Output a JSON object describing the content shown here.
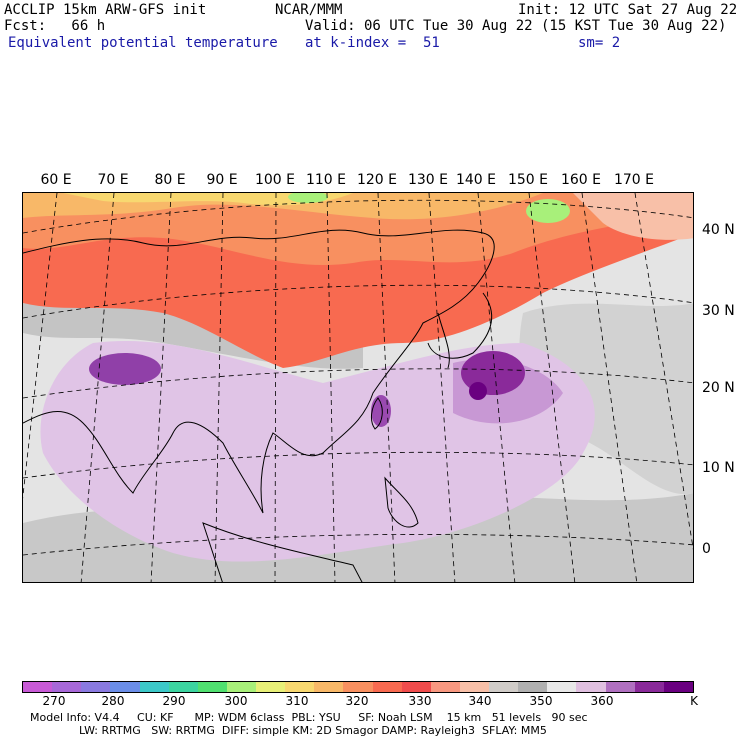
{
  "header": {
    "line1_left": "ACCLIP 15km ARW-GFS init",
    "line1_center": "NCAR/MMM",
    "line1_right": "Init: 12 UTC Sat 27 Aug 22",
    "line2_left": "Fcst:   66 h",
    "line2_right": "Valid: 06 UTC Tue 30 Aug 22 (15 KST Tue 30 Aug 22)",
    "line3_left": "Equivalent potential temperature",
    "line3_center": "at k-index =  51",
    "line3_right": "sm= 2"
  },
  "longitude_labels": [
    "60 E",
    "70 E",
    "80 E",
    "90 E",
    "100 E",
    "110 E",
    "120 E",
    "130 E",
    "140 E",
    "150 E",
    "160 E",
    "170 E"
  ],
  "latitude_labels": [
    "40 N",
    "30 N",
    "20 N",
    "10 N",
    "0"
  ],
  "colorbar": {
    "colors": [
      "#c85ad6",
      "#a768d8",
      "#8a7ae0",
      "#6b8ee8",
      "#3cc8c8",
      "#3cd4a0",
      "#50e070",
      "#a8f07a",
      "#e8f078",
      "#f8d870",
      "#f8b868",
      "#f89060",
      "#f86a50",
      "#f04c4c",
      "#f89880",
      "#f8c0a8",
      "#d0ccc8",
      "#b0b0b0",
      "#e8e8e8",
      "#e0c0e0",
      "#b070c0",
      "#8a2a9a",
      "#6a0080"
    ],
    "labels": [
      "270",
      "280",
      "290",
      "300",
      "310",
      "320",
      "330",
      "340",
      "350",
      "360",
      "K"
    ]
  },
  "footer": {
    "line1": "Model Info: V4.4     CU: KF      MP: WDM 6class  PBL: YSU     SF: Noah LSM    15 km   51 levels   90 sec",
    "line2": "              LW: RRTMG   SW: RRTMG  DIFF: simple KM: 2D Smagor DAMP: Rayleigh3  SFLAY: MM5"
  }
}
